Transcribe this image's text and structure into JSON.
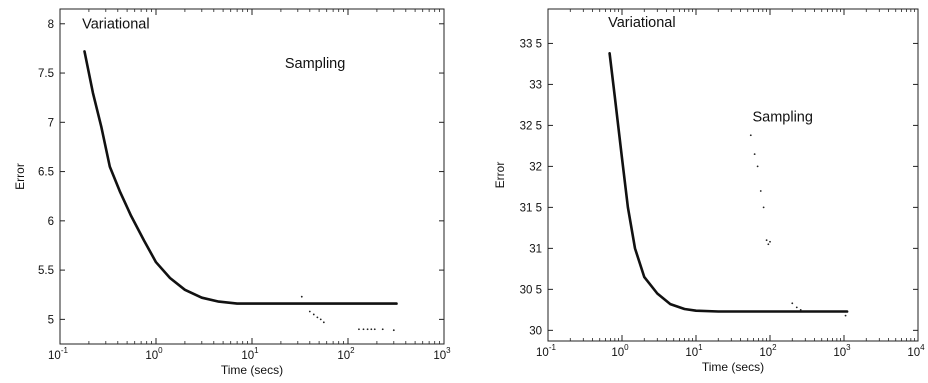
{
  "chart_data": [
    {
      "type": "line",
      "xlabel": "Time (secs)",
      "ylabel": "Error",
      "xscale": "log",
      "xlim": [
        0.1,
        1000
      ],
      "ylim": [
        4.75,
        8.15
      ],
      "x_ticks": [
        {
          "base": "10",
          "exp": "-1",
          "value": 0.1
        },
        {
          "base": "10",
          "exp": "0",
          "value": 1
        },
        {
          "base": "10",
          "exp": "1",
          "value": 10
        },
        {
          "base": "10",
          "exp": "2",
          "value": 100
        },
        {
          "base": "10",
          "exp": "3",
          "value": 1000
        }
      ],
      "y_ticks": [
        {
          "label": "5",
          "value": 5
        },
        {
          "label": "5.5",
          "value": 5.5
        },
        {
          "label": "6",
          "value": 6
        },
        {
          "label": "6.5",
          "value": 6.5
        },
        {
          "label": "7",
          "value": 7
        },
        {
          "label": "7.5",
          "value": 7.5
        },
        {
          "label": "8",
          "value": 8
        }
      ],
      "annotations": [
        {
          "text": "Variational",
          "x": 0.17,
          "y": 7.95
        },
        {
          "text": "Sampling",
          "x": 22,
          "y": 7.55
        }
      ],
      "series": [
        {
          "name": "Variational",
          "style": "solid",
          "x": [
            0.18,
            0.22,
            0.27,
            0.33,
            0.42,
            0.55,
            0.75,
            1.0,
            1.4,
            2.0,
            3.0,
            4.5,
            7,
            10,
            20,
            50,
            100,
            200,
            320
          ],
          "y": [
            7.72,
            7.3,
            6.95,
            6.55,
            6.3,
            6.05,
            5.8,
            5.58,
            5.42,
            5.3,
            5.22,
            5.18,
            5.16,
            5.16,
            5.16,
            5.16,
            5.16,
            5.16,
            5.16
          ]
        },
        {
          "name": "Sampling",
          "style": "dots",
          "x": [
            33,
            40,
            44,
            48,
            52,
            56,
            130,
            145,
            160,
            175,
            190,
            230,
            300
          ],
          "y": [
            5.23,
            5.08,
            5.05,
            5.02,
            5.0,
            4.97,
            4.9,
            4.9,
            4.9,
            4.9,
            4.9,
            4.9,
            4.89
          ]
        }
      ]
    },
    {
      "type": "line",
      "xlabel": "Time (secs)",
      "ylabel": "Error",
      "xscale": "log",
      "xlim": [
        0.1,
        10000
      ],
      "ylim": [
        29.87,
        33.92
      ],
      "x_ticks": [
        {
          "base": "10",
          "exp": "-1",
          "value": 0.1
        },
        {
          "base": "10",
          "exp": "0",
          "value": 1
        },
        {
          "base": "10",
          "exp": "1",
          "value": 10
        },
        {
          "base": "10",
          "exp": "2",
          "value": 100
        },
        {
          "base": "10",
          "exp": "3",
          "value": 1000
        },
        {
          "base": "10",
          "exp": "4",
          "value": 10000
        }
      ],
      "y_ticks": [
        {
          "label": "30",
          "value": 30
        },
        {
          "label": "30 5",
          "value": 30.5
        },
        {
          "label": "31",
          "value": 31
        },
        {
          "label": "31 5",
          "value": 31.5
        },
        {
          "label": "32",
          "value": 32
        },
        {
          "label": "32 5",
          "value": 32.5
        },
        {
          "label": "33",
          "value": 33
        },
        {
          "label": "33 5",
          "value": 33.5
        }
      ],
      "annotations": [
        {
          "text": "Variational",
          "x": 0.65,
          "y": 33.7
        },
        {
          "text": "Sampling",
          "x": 58,
          "y": 32.55
        }
      ],
      "series": [
        {
          "name": "Variational",
          "style": "solid",
          "x": [
            0.68,
            0.8,
            1.0,
            1.2,
            1.5,
            2.0,
            3.0,
            4.5,
            7,
            10,
            20,
            50,
            100,
            200,
            500,
            1100
          ],
          "y": [
            33.38,
            32.85,
            32.1,
            31.5,
            31.0,
            30.65,
            30.45,
            30.32,
            30.26,
            30.24,
            30.23,
            30.23,
            30.23,
            30.23,
            30.23,
            30.23
          ]
        },
        {
          "name": "Sampling",
          "style": "dots",
          "x": [
            55,
            62,
            68,
            75,
            82,
            90,
            95,
            100,
            200,
            230,
            260,
            1050
          ],
          "y": [
            32.38,
            32.15,
            32.0,
            31.7,
            31.5,
            31.1,
            31.05,
            31.08,
            30.33,
            30.28,
            30.25,
            30.18
          ]
        }
      ]
    }
  ]
}
